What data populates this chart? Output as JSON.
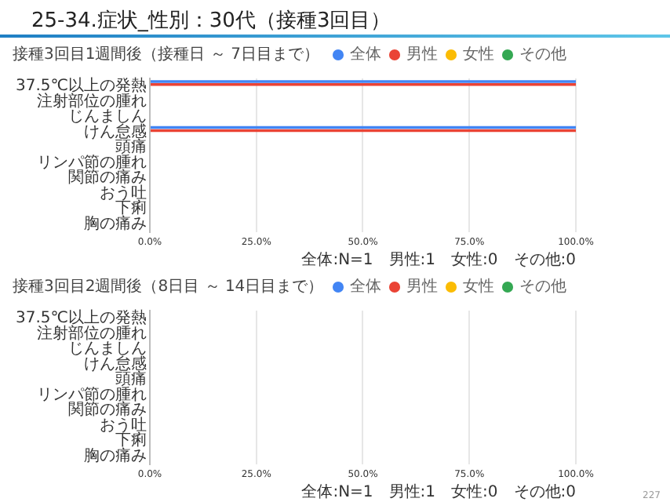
{
  "chart_data": [
    {
      "type": "bar",
      "orientation": "horizontal",
      "title": "25-34.症状_性別：30代（接種3回目）",
      "subtitle": "接種3回目1週間後（接種日 ～ 7日目まで）",
      "categories": [
        "37.5℃以上の発熱",
        "注射部位の腫れ",
        "じんましん",
        "けん怠感",
        "頭痛",
        "リンパ節の腫れ",
        "関節の痛み",
        "おう吐",
        "下痢",
        "胸の痛み"
      ],
      "series": [
        {
          "name": "全体",
          "color": "#4285f4",
          "values": [
            100,
            0,
            0,
            100,
            0,
            0,
            0,
            0,
            0,
            0
          ]
        },
        {
          "name": "男性",
          "color": "#ea4335",
          "values": [
            100,
            0,
            0,
            100,
            0,
            0,
            0,
            0,
            0,
            0
          ]
        },
        {
          "name": "女性",
          "color": "#fbbc04",
          "values": [
            0,
            0,
            0,
            0,
            0,
            0,
            0,
            0,
            0,
            0
          ]
        },
        {
          "name": "その他",
          "color": "#34a853",
          "values": [
            0,
            0,
            0,
            0,
            0,
            0,
            0,
            0,
            0,
            0
          ]
        }
      ],
      "xlim": [
        0,
        100
      ],
      "xticks": [
        {
          "value": 0,
          "label": "0.0%"
        },
        {
          "value": 25,
          "label": "25.0%"
        },
        {
          "value": 50,
          "label": "50.0%"
        },
        {
          "value": 75,
          "label": "75.0%"
        },
        {
          "value": 100,
          "label": "100.0%"
        }
      ],
      "grid": "x",
      "legend": "top",
      "annotations": [
        "全体:N=1　男性:1　女性:0　その他:0"
      ]
    },
    {
      "type": "bar",
      "orientation": "horizontal",
      "subtitle": "接種3回目2週間後（8日目 ～ 14日目まで）",
      "categories": [
        "37.5℃以上の発熱",
        "注射部位の腫れ",
        "じんましん",
        "けん怠感",
        "頭痛",
        "リンパ節の腫れ",
        "関節の痛み",
        "おう吐",
        "下痢",
        "胸の痛み"
      ],
      "series": [
        {
          "name": "全体",
          "color": "#4285f4",
          "values": [
            0,
            0,
            0,
            0,
            0,
            0,
            0,
            0,
            0,
            0
          ]
        },
        {
          "name": "男性",
          "color": "#ea4335",
          "values": [
            0,
            0,
            0,
            0,
            0,
            0,
            0,
            0,
            0,
            0
          ]
        },
        {
          "name": "女性",
          "color": "#fbbc04",
          "values": [
            0,
            0,
            0,
            0,
            0,
            0,
            0,
            0,
            0,
            0
          ]
        },
        {
          "name": "その他",
          "color": "#34a853",
          "values": [
            0,
            0,
            0,
            0,
            0,
            0,
            0,
            0,
            0,
            0
          ]
        }
      ],
      "xlim": [
        0,
        100
      ],
      "xticks": [
        {
          "value": 0,
          "label": "0.0%"
        },
        {
          "value": 25,
          "label": "25.0%"
        },
        {
          "value": 50,
          "label": "50.0%"
        },
        {
          "value": 75,
          "label": "75.0%"
        },
        {
          "value": 100,
          "label": "100.0%"
        }
      ],
      "grid": "x",
      "legend": "top",
      "annotations": [
        "全体:N=1　男性:1　女性:0　その他:0",
        "227"
      ]
    }
  ]
}
